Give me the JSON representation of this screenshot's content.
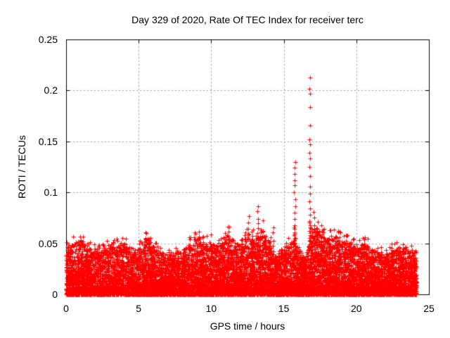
{
  "chart_data": {
    "type": "scatter",
    "title": "Day 329 of 2020, Rate Of TEC Index for receiver terc",
    "xlabel": "GPS time / hours",
    "ylabel": "ROTI / TECUs",
    "xlim": [
      0,
      25
    ],
    "ylim": [
      0,
      0.25
    ],
    "xticks": [
      0,
      5,
      10,
      15,
      20,
      25
    ],
    "xtick_labels": [
      "0",
      "5",
      "10",
      "15",
      "20",
      "25"
    ],
    "yticks": [
      0,
      0.05,
      0.1,
      0.15,
      0.2,
      0.25
    ],
    "ytick_labels": [
      "0",
      "0.05",
      "0.1",
      "0.15",
      "0.2",
      "0.25"
    ],
    "grid": true,
    "legend": "none",
    "marker": {
      "shape": "plus",
      "color": "#ff0000",
      "size": 7
    },
    "colors": {
      "marker": "#ff0000",
      "border": "#000000",
      "grid": "#9b9b9b",
      "background": "#ffffff",
      "text": "#000000"
    },
    "data_x_range": [
      0,
      24.15
    ],
    "max_value": 0.213,
    "max_value_time": 16.8,
    "baseline_envelope": {
      "step_hours": 0.5,
      "band_top": [
        0.046,
        0.05,
        0.054,
        0.046,
        0.042,
        0.044,
        0.05,
        0.048,
        0.05,
        0.04,
        0.044,
        0.057,
        0.048,
        0.042,
        0.039,
        0.041,
        0.044,
        0.049,
        0.056,
        0.05,
        0.052,
        0.047,
        0.06,
        0.053,
        0.048,
        0.058,
        0.054,
        0.063,
        0.053,
        0.037,
        0.043,
        0.053,
        0.046,
        0.034,
        0.068,
        0.062,
        0.054,
        0.058,
        0.052,
        0.053,
        0.044,
        0.05,
        0.046,
        0.041,
        0.039,
        0.042,
        0.047,
        0.044,
        0.042
      ]
    },
    "noise": {
      "points": 12000,
      "exponent": 2.0,
      "seed": 329,
      "exceed_chance": 0.012
    },
    "spikes": [
      {
        "x": 1.0,
        "top": 0.057,
        "n": 4
      },
      {
        "x": 3.35,
        "top": 0.053,
        "n": 3
      },
      {
        "x": 3.9,
        "top": 0.056,
        "n": 3
      },
      {
        "x": 5.45,
        "top": 0.062,
        "n": 5
      },
      {
        "x": 8.9,
        "top": 0.06,
        "n": 4
      },
      {
        "x": 9.35,
        "top": 0.057,
        "n": 4
      },
      {
        "x": 11.2,
        "top": 0.066,
        "n": 6
      },
      {
        "x": 12.55,
        "top": 0.077,
        "n": 7
      },
      {
        "x": 13.2,
        "top": 0.088,
        "n": 7
      },
      {
        "x": 13.55,
        "top": 0.071,
        "n": 5
      },
      {
        "x": 14.3,
        "top": 0.066,
        "n": 6
      },
      {
        "x": 15.75,
        "ys": [
          0.13,
          0.124,
          0.118,
          0.112,
          0.107,
          0.1,
          0.093,
          0.086,
          0.08,
          0.074,
          0.068
        ]
      },
      {
        "x": 16.8,
        "ys": [
          0.213,
          0.202,
          0.197,
          0.184,
          0.166,
          0.152,
          0.147,
          0.139,
          0.133,
          0.125,
          0.116,
          0.106,
          0.099,
          0.091,
          0.084,
          0.078,
          0.072
        ]
      },
      {
        "x": 17.1,
        "top": 0.082,
        "n": 6
      },
      {
        "x": 17.35,
        "top": 0.072,
        "n": 4
      },
      {
        "x": 17.8,
        "top": 0.063,
        "n": 4
      },
      {
        "x": 18.8,
        "top": 0.064,
        "n": 5
      },
      {
        "x": 19.4,
        "top": 0.058,
        "n": 4
      },
      {
        "x": 20.55,
        "top": 0.056,
        "n": 4
      },
      {
        "x": 22.4,
        "top": 0.051,
        "n": 3
      },
      {
        "x": 23.2,
        "top": 0.05,
        "n": 4
      },
      {
        "x": 24.05,
        "top": 0.042,
        "n": 4
      }
    ]
  }
}
